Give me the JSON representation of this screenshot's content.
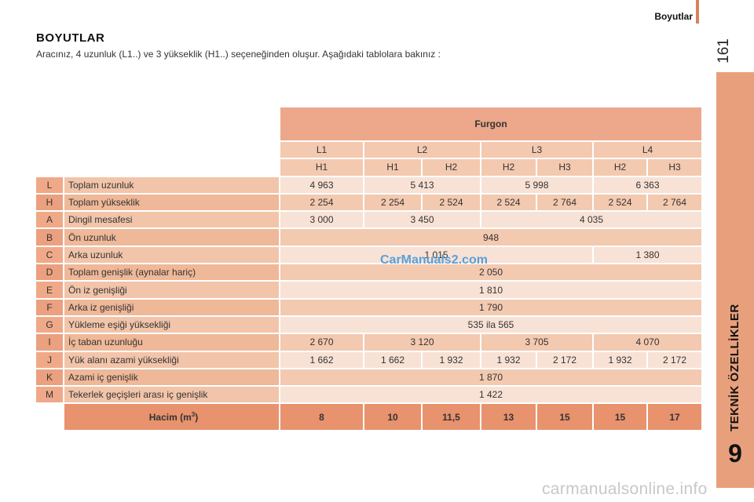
{
  "header": {
    "section_title": "Boyutlar",
    "page_number": "161"
  },
  "sidebar": {
    "chapter_title": "TEKNİK ÖZELLİKLER",
    "chapter_number": "9"
  },
  "document": {
    "title": "BOYUTLAR",
    "intro": "Aracınız, 4 uzunluk (L1..) ve 3 yükseklik (H1..) seçeneğinden oluşur. Aşağıdaki tablolara bakınız :"
  },
  "table": {
    "group_header": "Furgon",
    "lengths": [
      "L1",
      "L2",
      "L3",
      "L4"
    ],
    "heights": [
      "H1",
      "H1",
      "H2",
      "H2",
      "H3",
      "H2",
      "H3"
    ],
    "rows": [
      {
        "code": "L",
        "label": "Toplam uzunluk",
        "values": [
          "4 963",
          "5 413",
          "5 998",
          "6 363"
        ]
      },
      {
        "code": "H",
        "label": "Toplam yükseklik",
        "values": [
          "2 254",
          "2 254",
          "2 524",
          "2 524",
          "2 764",
          "2 524",
          "2 764"
        ]
      },
      {
        "code": "A",
        "label": "Dingil mesafesi",
        "values": [
          "3 000",
          "3 450",
          "4 035"
        ]
      },
      {
        "code": "B",
        "label": "Ön uzunluk",
        "values": [
          "948"
        ]
      },
      {
        "code": "C",
        "label": "Arka uzunluk",
        "values": [
          "1 015",
          "1 380"
        ]
      },
      {
        "code": "D",
        "label": "Toplam genişlik (aynalar hariç)",
        "values": [
          "2 050"
        ]
      },
      {
        "code": "E",
        "label": "Ön iz genişliği",
        "values": [
          "1 810"
        ]
      },
      {
        "code": "F",
        "label": "Arka iz genişliği",
        "values": [
          "1 790"
        ]
      },
      {
        "code": "G",
        "label": "Yükleme eşiği yüksekliği",
        "values": [
          "535 ila 565"
        ]
      },
      {
        "code": "I",
        "label": "İç taban uzunluğu",
        "values": [
          "2 670",
          "3 120",
          "3 705",
          "4 070"
        ]
      },
      {
        "code": "J",
        "label": "Yük alanı azami yüksekliği",
        "values": [
          "1 662",
          "1 662",
          "1 932",
          "1 932",
          "2 172",
          "1 932",
          "2 172"
        ]
      },
      {
        "code": "K",
        "label": "Azami iç genişlik",
        "values": [
          "1 870"
        ]
      },
      {
        "code": "M",
        "label": "Tekerlek geçişleri arası iç genişlik",
        "values": [
          "1 422"
        ]
      }
    ],
    "volume": {
      "label": "Hacim (m",
      "unit_exponent": "3",
      "label_close": ")",
      "values": [
        "8",
        "10",
        "11,5",
        "13",
        "15",
        "15",
        "17"
      ]
    }
  },
  "watermarks": {
    "center": "CarManuals2.com",
    "footer": "carmanualsonline.info"
  }
}
